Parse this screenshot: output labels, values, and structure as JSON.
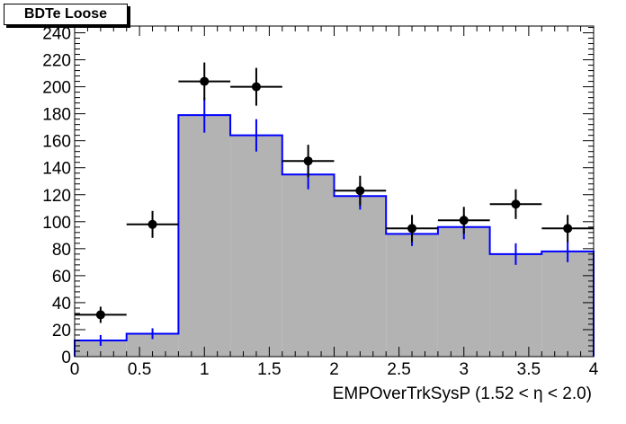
{
  "chart_data": {
    "type": "bar",
    "title": "BDTe Loose",
    "xlabel": "EMPOverTrkSysP (1.52 <   η < 2.0)",
    "ylabel": "",
    "xlim": [
      0,
      4
    ],
    "ylim": [
      0,
      245
    ],
    "xticks": [
      0,
      0.5,
      1,
      1.5,
      2,
      2.5,
      3,
      3.5,
      4
    ],
    "xtick_labels": [
      "0",
      "0.5",
      "1",
      "1.5",
      "2",
      "2.5",
      "3",
      "3.5",
      "4"
    ],
    "yticks": [
      0,
      20,
      40,
      60,
      80,
      100,
      120,
      140,
      160,
      180,
      200,
      220,
      240
    ],
    "ytick_labels": [
      "0",
      "20",
      "40",
      "60",
      "80",
      "100",
      "120",
      "140",
      "160",
      "180",
      "200",
      "220",
      "240"
    ],
    "bin_edges": [
      0,
      0.4,
      0.8,
      1.2,
      1.6,
      2.0,
      2.4,
      2.8,
      3.2,
      3.6,
      4.0
    ],
    "series": [
      {
        "kind": "histogram",
        "values": [
          12,
          17,
          179,
          164,
          135,
          119,
          91,
          96,
          76,
          78
        ],
        "errors": [
          4,
          4,
          13,
          12,
          11,
          10,
          9,
          9,
          8,
          8
        ],
        "fill": "#b3b3b3",
        "line": "#0000ff"
      },
      {
        "kind": "points",
        "x": [
          0.2,
          0.6,
          1.0,
          1.4,
          1.8,
          2.2,
          2.6,
          3.0,
          3.4,
          3.8
        ],
        "values": [
          31,
          98,
          204,
          200,
          145,
          123,
          95,
          101,
          113,
          95
        ],
        "errors": [
          6,
          10,
          14,
          14,
          12,
          11,
          10,
          10,
          11,
          10
        ],
        "xerr": 0.2,
        "color": "#000000"
      }
    ]
  }
}
